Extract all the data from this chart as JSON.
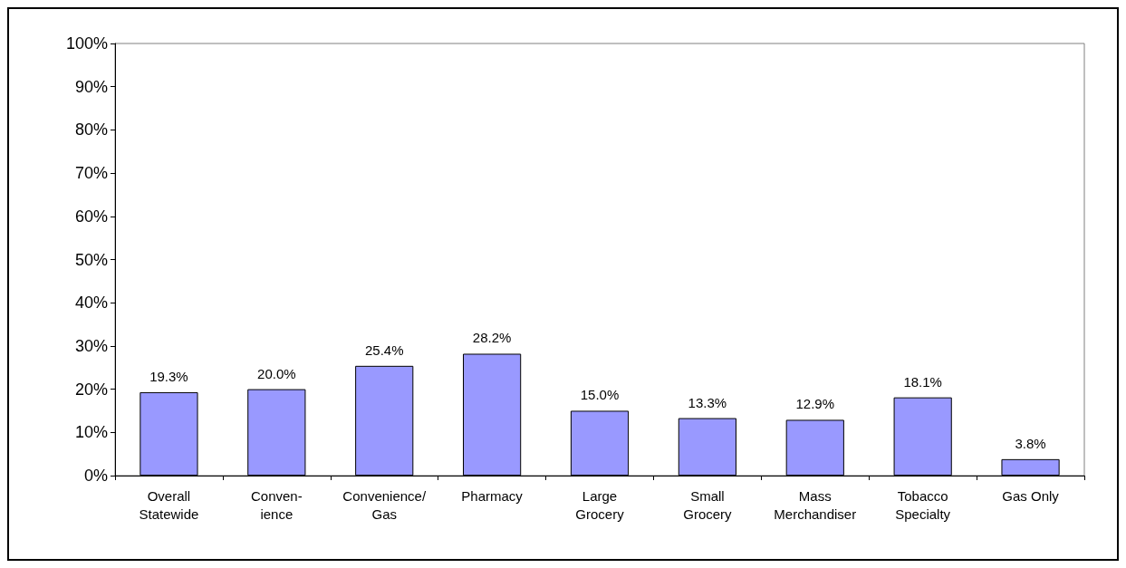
{
  "chart_data": {
    "type": "bar",
    "categories": [
      "Overall\nStatewide",
      "Conven-\nience",
      "Convenience/\nGas",
      "Pharmacy",
      "Large\nGrocery",
      "Small\nGrocery",
      "Mass\nMerchandiser",
      "Tobacco\nSpecialty",
      "Gas Only"
    ],
    "values": [
      19.3,
      20.0,
      25.4,
      28.2,
      15.0,
      13.3,
      12.9,
      18.1,
      3.8
    ],
    "value_labels": [
      "19.3%",
      "20.0%",
      "25.4%",
      "28.2%",
      "15.0%",
      "13.3%",
      "12.9%",
      "18.1%",
      "3.8%"
    ],
    "color": "#9999ff",
    "ylim": [
      0,
      100
    ],
    "yticks": [
      {
        "value": 0,
        "label": "0%"
      },
      {
        "value": 10,
        "label": "10%"
      },
      {
        "value": 20,
        "label": "20%"
      },
      {
        "value": 30,
        "label": "30%"
      },
      {
        "value": 40,
        "label": "40%"
      },
      {
        "value": 50,
        "label": "50%"
      },
      {
        "value": 60,
        "label": "60%"
      },
      {
        "value": 70,
        "label": "70%"
      },
      {
        "value": 80,
        "label": "80%"
      },
      {
        "value": 90,
        "label": "90%"
      },
      {
        "value": 100,
        "label": "100%"
      }
    ],
    "grid": false
  }
}
